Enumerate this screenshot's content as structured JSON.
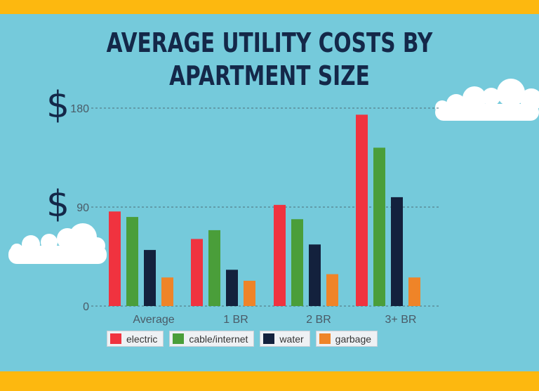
{
  "title_line1": "AVERAGE UTILITY COSTS BY",
  "title_line2": "APARTMENT SIZE",
  "chart_data": {
    "type": "bar",
    "title": "AVERAGE UTILITY COSTS BY APARTMENT SIZE",
    "categories": [
      "Average",
      "1 BR",
      "2 BR",
      "3+ BR"
    ],
    "series": [
      {
        "name": "electric",
        "color": "#f0333f",
        "values": [
          86,
          61,
          92,
          174
        ]
      },
      {
        "name": "cable/internet",
        "color": "#4a9e3a",
        "values": [
          81,
          69,
          79,
          144
        ]
      },
      {
        "name": "water",
        "color": "#13213d",
        "values": [
          51,
          33,
          56,
          99
        ]
      },
      {
        "name": "garbage",
        "color": "#ef8428",
        "values": [
          26,
          23,
          29,
          26
        ]
      }
    ],
    "yticks": [
      0,
      90,
      180
    ],
    "ytick_labels": [
      "0",
      "90",
      "180"
    ],
    "currency_symbol": "$",
    "ylim": [
      0,
      180
    ],
    "grid": true,
    "legend_position": "bottom"
  },
  "colors": {
    "background": "#75cadb",
    "band": "#fdb80f",
    "title": "#142849"
  }
}
